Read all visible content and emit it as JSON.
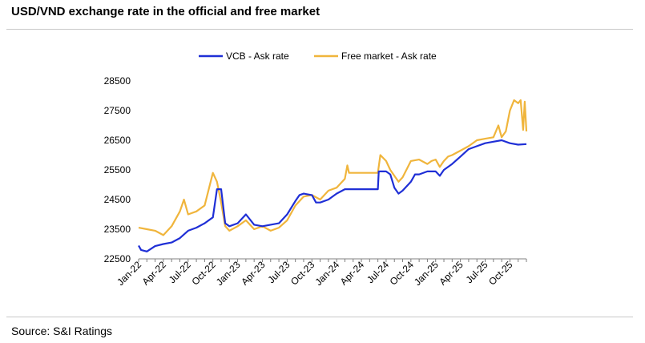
{
  "title": "USD/VND exchange rate in the official and free market",
  "source": "Source: S&I Ratings",
  "chart_data": {
    "type": "line",
    "title": "USD/VND exchange rate in the official and free market",
    "xlabel": "",
    "ylabel": "",
    "ylim": [
      22500,
      28500
    ],
    "yticks": [
      22500,
      23500,
      24500,
      25500,
      26500,
      27500,
      28500
    ],
    "xlim": [
      0,
      47
    ],
    "xtick_labels": [
      "Jan-22",
      "Apr-22",
      "Jul-22",
      "Oct-22",
      "Jan-23",
      "Apr-23",
      "Jul-23",
      "Oct-23",
      "Jan-24",
      "Apr-24",
      "Jul-24",
      "Oct-24",
      "Jan-25",
      "Apr-25",
      "Jul-25",
      "Oct-25"
    ],
    "xtick_positions": [
      0,
      3,
      6,
      9,
      12,
      15,
      18,
      21,
      24,
      27,
      30,
      33,
      36,
      39,
      42,
      45
    ],
    "legend_position": "top",
    "series": [
      {
        "name": "VCB - Ask rate",
        "color": "#1f2fd6",
        "x": [
          0,
          0.3,
          1,
          2,
          3,
          4,
          5,
          6,
          7,
          8,
          9,
          9.5,
          10,
          10.5,
          11,
          12,
          13,
          14,
          15,
          16,
          17,
          18,
          19,
          19.5,
          20,
          21,
          21.5,
          22,
          23,
          24,
          25,
          26,
          27,
          28,
          29,
          29.1,
          30,
          30.5,
          31,
          31.5,
          32,
          33,
          33.5,
          34,
          35,
          36,
          36.5,
          37,
          38,
          39,
          40,
          41,
          42,
          43,
          44,
          45,
          46,
          47
        ],
        "y": [
          22950,
          22800,
          22750,
          22930,
          23000,
          23050,
          23200,
          23450,
          23550,
          23700,
          23900,
          24850,
          24850,
          23700,
          23600,
          23700,
          24000,
          23650,
          23600,
          23650,
          23700,
          24000,
          24450,
          24650,
          24700,
          24650,
          24400,
          24400,
          24500,
          24700,
          24850,
          24850,
          24850,
          24850,
          24850,
          25450,
          25450,
          25350,
          24900,
          24700,
          24800,
          25100,
          25350,
          25350,
          25450,
          25450,
          25300,
          25500,
          25700,
          25950,
          26200,
          26300,
          26400,
          26450,
          26500,
          26400,
          26350,
          26370
        ]
      },
      {
        "name": "Free market - Ask rate",
        "color": "#f0b53c",
        "x": [
          0,
          1,
          2,
          3,
          4,
          5,
          5.5,
          6,
          7,
          8,
          9,
          9.5,
          10,
          10.5,
          11,
          12,
          13,
          14,
          15,
          16,
          17,
          18,
          19,
          20,
          21,
          22,
          23,
          24,
          25,
          25.3,
          25.5,
          26,
          27,
          28,
          29,
          29.3,
          30,
          30.5,
          31,
          31.5,
          32,
          33,
          34,
          35,
          35.5,
          36,
          36.5,
          37,
          37.5,
          38,
          39,
          40,
          41,
          42,
          43,
          43.3,
          43.6,
          44,
          44.5,
          45,
          45.5,
          46,
          46.3,
          46.6,
          46.8,
          47
        ],
        "y": [
          23550,
          23500,
          23450,
          23300,
          23600,
          24100,
          24500,
          24000,
          24100,
          24300,
          25400,
          25100,
          24400,
          23600,
          23450,
          23600,
          23800,
          23500,
          23600,
          23450,
          23550,
          23800,
          24300,
          24600,
          24650,
          24500,
          24800,
          24900,
          25200,
          25650,
          25400,
          25400,
          25400,
          25400,
          25400,
          26000,
          25800,
          25500,
          25300,
          25100,
          25250,
          25800,
          25850,
          25700,
          25800,
          25850,
          25600,
          25800,
          25950,
          26000,
          26150,
          26300,
          26500,
          26550,
          26600,
          26800,
          27000,
          26600,
          26800,
          27500,
          27850,
          27750,
          27850,
          26850,
          27800,
          26800
        ]
      }
    ]
  }
}
